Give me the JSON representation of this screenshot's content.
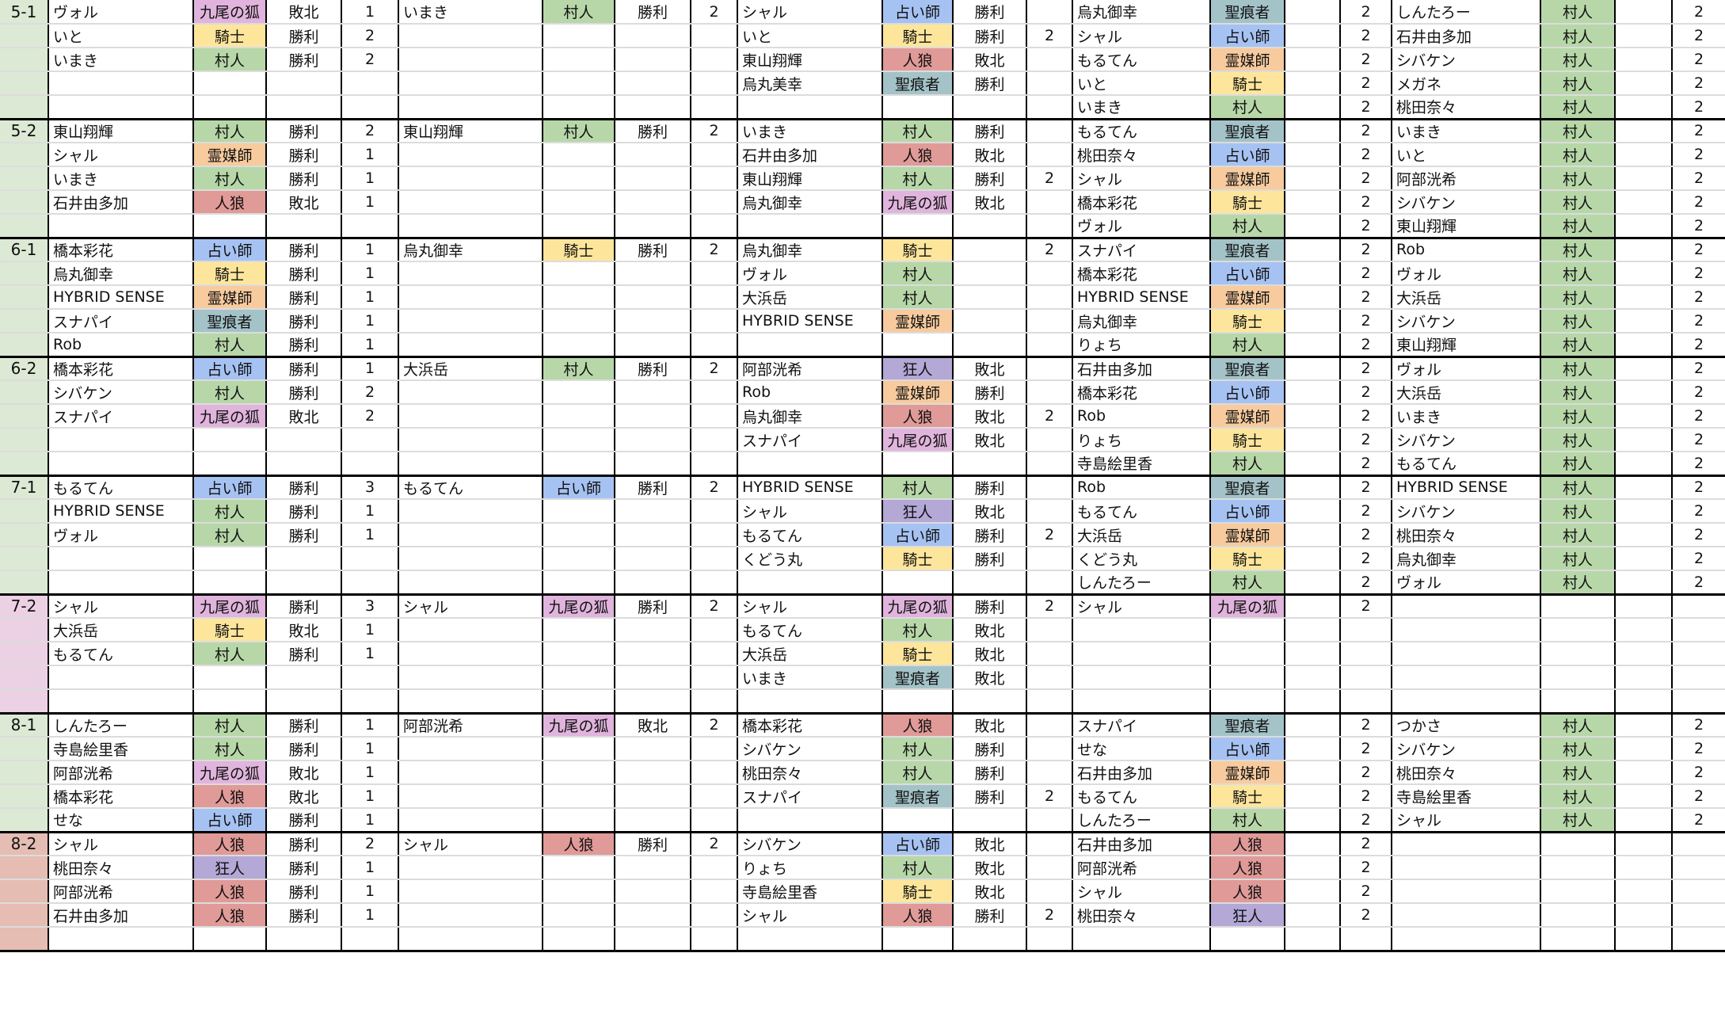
{
  "role_colors": {
    "村人": "#b7d7a8",
    "騎士": "#fde69c",
    "占い師": "#a6c2f2",
    "霊媒師": "#f7cb9e",
    "人狼": "#e09a98",
    "九尾の狐": "#e0b4dc",
    "聖痕者": "#a4c3c8",
    "狂人": "#b3a8d6"
  },
  "groups": [
    {
      "label": "5-1",
      "color": "#dce9d5",
      "rows": [
        [
          "ヴォル",
          "九尾の狐",
          "敗北",
          "1",
          "いまき",
          "村人",
          "勝利",
          "2",
          "シャル",
          "占い師",
          "勝利",
          "",
          "烏丸御幸",
          "聖痕者",
          "",
          "2",
          "しんたろー",
          "村人",
          "",
          "2"
        ],
        [
          "いと",
          "騎士",
          "勝利",
          "2",
          "",
          "",
          "",
          "",
          "いと",
          "騎士",
          "勝利",
          "2",
          "シャル",
          "占い師",
          "",
          "2",
          "石井由多加",
          "村人",
          "",
          "2"
        ],
        [
          "いまき",
          "村人",
          "勝利",
          "2",
          "",
          "",
          "",
          "",
          "東山翔輝",
          "人狼",
          "敗北",
          "",
          "もるてん",
          "霊媒師",
          "",
          "2",
          "シバケン",
          "村人",
          "",
          "2"
        ],
        [
          "",
          "",
          "",
          "",
          "",
          "",
          "",
          "",
          "烏丸美幸",
          "聖痕者",
          "勝利",
          "",
          "いと",
          "騎士",
          "",
          "2",
          "メガネ",
          "村人",
          "",
          "2"
        ],
        [
          "",
          "",
          "",
          "",
          "",
          "",
          "",
          "",
          "",
          "",
          "",
          "",
          "いまき",
          "村人",
          "",
          "2",
          "桃田奈々",
          "村人",
          "",
          "2"
        ]
      ]
    },
    {
      "label": "5-2",
      "color": "#dce9d5",
      "rows": [
        [
          "東山翔輝",
          "村人",
          "勝利",
          "2",
          "東山翔輝",
          "村人",
          "勝利",
          "2",
          "いまき",
          "村人",
          "勝利",
          "",
          "もるてん",
          "聖痕者",
          "",
          "2",
          "いまき",
          "村人",
          "",
          "2"
        ],
        [
          "シャル",
          "霊媒師",
          "勝利",
          "1",
          "",
          "",
          "",
          "",
          "石井由多加",
          "人狼",
          "敗北",
          "",
          "桃田奈々",
          "占い師",
          "",
          "2",
          "いと",
          "村人",
          "",
          "2"
        ],
        [
          "いまき",
          "村人",
          "勝利",
          "1",
          "",
          "",
          "",
          "",
          "東山翔輝",
          "村人",
          "勝利",
          "2",
          "シャル",
          "霊媒師",
          "",
          "2",
          "阿部洸希",
          "村人",
          "",
          "2"
        ],
        [
          "石井由多加",
          "人狼",
          "敗北",
          "1",
          "",
          "",
          "",
          "",
          "烏丸御幸",
          "九尾の狐",
          "敗北",
          "",
          "橋本彩花",
          "騎士",
          "",
          "2",
          "シバケン",
          "村人",
          "",
          "2"
        ],
        [
          "",
          "",
          "",
          "",
          "",
          "",
          "",
          "",
          "",
          "",
          "",
          "",
          "ヴォル",
          "村人",
          "",
          "2",
          "東山翔輝",
          "村人",
          "",
          "2"
        ]
      ]
    },
    {
      "label": "6-1",
      "color": "#dce9d5",
      "rows": [
        [
          "橋本彩花",
          "占い師",
          "勝利",
          "1",
          "烏丸御幸",
          "騎士",
          "勝利",
          "2",
          "烏丸御幸",
          "騎士",
          "",
          "2",
          "スナパイ",
          "聖痕者",
          "",
          "2",
          "Rob",
          "村人",
          "",
          "2"
        ],
        [
          "烏丸御幸",
          "騎士",
          "勝利",
          "1",
          "",
          "",
          "",
          "",
          "ヴォル",
          "村人",
          "",
          "",
          "橋本彩花",
          "占い師",
          "",
          "2",
          "ヴォル",
          "村人",
          "",
          "2"
        ],
        [
          "HYBRID SENSE",
          "霊媒師",
          "勝利",
          "1",
          "",
          "",
          "",
          "",
          "大浜岳",
          "村人",
          "",
          "",
          "HYBRID SENSE",
          "霊媒師",
          "",
          "2",
          "大浜岳",
          "村人",
          "",
          "2"
        ],
        [
          "スナパイ",
          "聖痕者",
          "勝利",
          "1",
          "",
          "",
          "",
          "",
          "HYBRID SENSE",
          "霊媒師",
          "",
          "",
          "烏丸御幸",
          "騎士",
          "",
          "2",
          "シバケン",
          "村人",
          "",
          "2"
        ],
        [
          "Rob",
          "村人",
          "勝利",
          "1",
          "",
          "",
          "",
          "",
          "",
          "",
          "",
          "",
          "りょち",
          "村人",
          "",
          "2",
          "東山翔輝",
          "村人",
          "",
          "2"
        ]
      ]
    },
    {
      "label": "6-2",
      "color": "#dce9d5",
      "rows": [
        [
          "橋本彩花",
          "占い師",
          "勝利",
          "1",
          "大浜岳",
          "村人",
          "勝利",
          "2",
          "阿部洸希",
          "狂人",
          "敗北",
          "",
          "石井由多加",
          "聖痕者",
          "",
          "2",
          "ヴォル",
          "村人",
          "",
          "2"
        ],
        [
          "シバケン",
          "村人",
          "勝利",
          "2",
          "",
          "",
          "",
          "",
          "Rob",
          "霊媒師",
          "勝利",
          "",
          "橋本彩花",
          "占い師",
          "",
          "2",
          "大浜岳",
          "村人",
          "",
          "2"
        ],
        [
          "スナパイ",
          "九尾の狐",
          "敗北",
          "2",
          "",
          "",
          "",
          "",
          "烏丸御幸",
          "人狼",
          "敗北",
          "2",
          "Rob",
          "霊媒師",
          "",
          "2",
          "いまき",
          "村人",
          "",
          "2"
        ],
        [
          "",
          "",
          "",
          "",
          "",
          "",
          "",
          "",
          "スナパイ",
          "九尾の狐",
          "敗北",
          "",
          "りょち",
          "騎士",
          "",
          "2",
          "シバケン",
          "村人",
          "",
          "2"
        ],
        [
          "",
          "",
          "",
          "",
          "",
          "",
          "",
          "",
          "",
          "",
          "",
          "",
          "寺島絵里香",
          "村人",
          "",
          "2",
          "もるてん",
          "村人",
          "",
          "2"
        ]
      ]
    },
    {
      "label": "7-1",
      "color": "#dce9d5",
      "rows": [
        [
          "もるてん",
          "占い師",
          "勝利",
          "3",
          "もるてん",
          "占い師",
          "勝利",
          "2",
          "HYBRID SENSE",
          "村人",
          "勝利",
          "",
          "Rob",
          "聖痕者",
          "",
          "2",
          "HYBRID SENSE",
          "村人",
          "",
          "2"
        ],
        [
          "HYBRID SENSE",
          "村人",
          "勝利",
          "1",
          "",
          "",
          "",
          "",
          "シャル",
          "狂人",
          "敗北",
          "",
          "もるてん",
          "占い師",
          "",
          "2",
          "シバケン",
          "村人",
          "",
          "2"
        ],
        [
          "ヴォル",
          "村人",
          "勝利",
          "1",
          "",
          "",
          "",
          "",
          "もるてん",
          "占い師",
          "勝利",
          "2",
          "大浜岳",
          "霊媒師",
          "",
          "2",
          "桃田奈々",
          "村人",
          "",
          "2"
        ],
        [
          "",
          "",
          "",
          "",
          "",
          "",
          "",
          "",
          "くどう丸",
          "騎士",
          "勝利",
          "",
          "くどう丸",
          "騎士",
          "",
          "2",
          "烏丸御幸",
          "村人",
          "",
          "2"
        ],
        [
          "",
          "",
          "",
          "",
          "",
          "",
          "",
          "",
          "",
          "",
          "",
          "",
          "しんたろー",
          "村人",
          "",
          "2",
          "ヴォル",
          "村人",
          "",
          "2"
        ]
      ]
    },
    {
      "label": "7-2",
      "color": "#ecd0e4",
      "rows": [
        [
          "シャル",
          "九尾の狐",
          "勝利",
          "3",
          "シャル",
          "九尾の狐",
          "勝利",
          "2",
          "シャル",
          "九尾の狐",
          "勝利",
          "2",
          "シャル",
          "九尾の狐",
          "",
          "2",
          "",
          "",
          "",
          ""
        ],
        [
          "大浜岳",
          "騎士",
          "敗北",
          "1",
          "",
          "",
          "",
          "",
          "もるてん",
          "村人",
          "敗北",
          "",
          "",
          "",
          "",
          "",
          "",
          "",
          "",
          ""
        ],
        [
          "もるてん",
          "村人",
          "勝利",
          "1",
          "",
          "",
          "",
          "",
          "大浜岳",
          "騎士",
          "敗北",
          "",
          "",
          "",
          "",
          "",
          "",
          "",
          "",
          ""
        ],
        [
          "",
          "",
          "",
          "",
          "",
          "",
          "",
          "",
          "いまき",
          "聖痕者",
          "敗北",
          "",
          "",
          "",
          "",
          "",
          "",
          "",
          "",
          ""
        ],
        [
          "",
          "",
          "",
          "",
          "",
          "",
          "",
          "",
          "",
          "",
          "",
          "",
          "",
          "",
          "",
          "",
          "",
          "",
          "",
          ""
        ]
      ]
    },
    {
      "label": "8-1",
      "color": "#dce9d5",
      "rows": [
        [
          "しんたろー",
          "村人",
          "勝利",
          "1",
          "阿部洸希",
          "九尾の狐",
          "敗北",
          "2",
          "橋本彩花",
          "人狼",
          "敗北",
          "",
          "スナパイ",
          "聖痕者",
          "",
          "2",
          "つかさ",
          "村人",
          "",
          "2"
        ],
        [
          "寺島絵里香",
          "村人",
          "勝利",
          "1",
          "",
          "",
          "",
          "",
          "シバケン",
          "村人",
          "勝利",
          "",
          "せな",
          "占い師",
          "",
          "2",
          "シバケン",
          "村人",
          "",
          "2"
        ],
        [
          "阿部洸希",
          "九尾の狐",
          "敗北",
          "1",
          "",
          "",
          "",
          "",
          "桃田奈々",
          "村人",
          "勝利",
          "",
          "石井由多加",
          "霊媒師",
          "",
          "2",
          "桃田奈々",
          "村人",
          "",
          "2"
        ],
        [
          "橋本彩花",
          "人狼",
          "敗北",
          "1",
          "",
          "",
          "",
          "",
          "スナパイ",
          "聖痕者",
          "勝利",
          "2",
          "もるてん",
          "騎士",
          "",
          "2",
          "寺島絵里香",
          "村人",
          "",
          "2"
        ],
        [
          "せな",
          "占い師",
          "勝利",
          "1",
          "",
          "",
          "",
          "",
          "",
          "",
          "",
          "",
          "しんたろー",
          "村人",
          "",
          "2",
          "シャル",
          "村人",
          "",
          "2"
        ]
      ]
    },
    {
      "label": "8-2",
      "color": "#e5bdb3",
      "rows": [
        [
          "シャル",
          "人狼",
          "勝利",
          "2",
          "シャル",
          "人狼",
          "勝利",
          "2",
          "シバケン",
          "占い師",
          "敗北",
          "",
          "石井由多加",
          "人狼",
          "",
          "2",
          "",
          "",
          "",
          ""
        ],
        [
          "桃田奈々",
          "狂人",
          "勝利",
          "1",
          "",
          "",
          "",
          "",
          "りょち",
          "村人",
          "敗北",
          "",
          "阿部洸希",
          "人狼",
          "",
          "2",
          "",
          "",
          "",
          ""
        ],
        [
          "阿部洸希",
          "人狼",
          "勝利",
          "1",
          "",
          "",
          "",
          "",
          "寺島絵里香",
          "騎士",
          "敗北",
          "",
          "シャル",
          "人狼",
          "",
          "2",
          "",
          "",
          "",
          ""
        ],
        [
          "石井由多加",
          "人狼",
          "勝利",
          "1",
          "",
          "",
          "",
          "",
          "シャル",
          "人狼",
          "勝利",
          "2",
          "桃田奈々",
          "狂人",
          "",
          "2",
          "",
          "",
          "",
          ""
        ],
        [
          "",
          "",
          "",
          "",
          "",
          "",
          "",
          "",
          "",
          "",
          "",
          "",
          "",
          "",
          "",
          "",
          "",
          "",
          "",
          ""
        ]
      ]
    }
  ]
}
